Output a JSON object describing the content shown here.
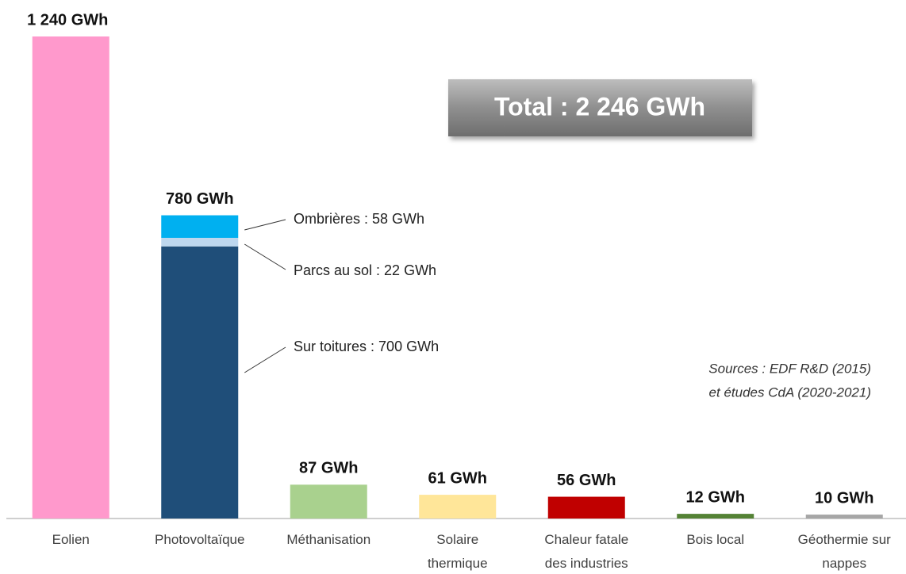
{
  "chart_data": {
    "type": "bar",
    "categories": [
      "Eolien",
      "Photovoltaïque",
      "Méthanisation",
      "Solaire\nthermique",
      "Chaleur fatale\ndes industries",
      "Bois local",
      "Géothermie sur\nnappes"
    ],
    "values": [
      1240,
      780,
      87,
      61,
      56,
      12,
      10
    ],
    "value_labels": [
      "1 240 GWh",
      "780 GWh",
      "87 GWh",
      "61 GWh",
      "56 GWh",
      "12 GWh",
      "10 GWh"
    ],
    "colors": [
      "#ff99cc",
      null,
      "#a9d18e",
      "#ffe699",
      "#c00000",
      "#548235",
      "#a6a6a6"
    ],
    "stack": {
      "category_index": 1,
      "segments": [
        {
          "label": "Sur toitures : 700 GWh",
          "value": 700,
          "color": "#1f4e79"
        },
        {
          "label": "Parcs au sol : 22 GWh",
          "value": 22,
          "color": "#bdd7ee"
        },
        {
          "label": "Ombrières : 58 GWh",
          "value": 58,
          "color": "#00b0f0"
        }
      ]
    },
    "total": "Total : 2 246 GWh",
    "sources": [
      "Sources : EDF R&D (2015)",
      "et études CdA (2020-2021)"
    ]
  }
}
